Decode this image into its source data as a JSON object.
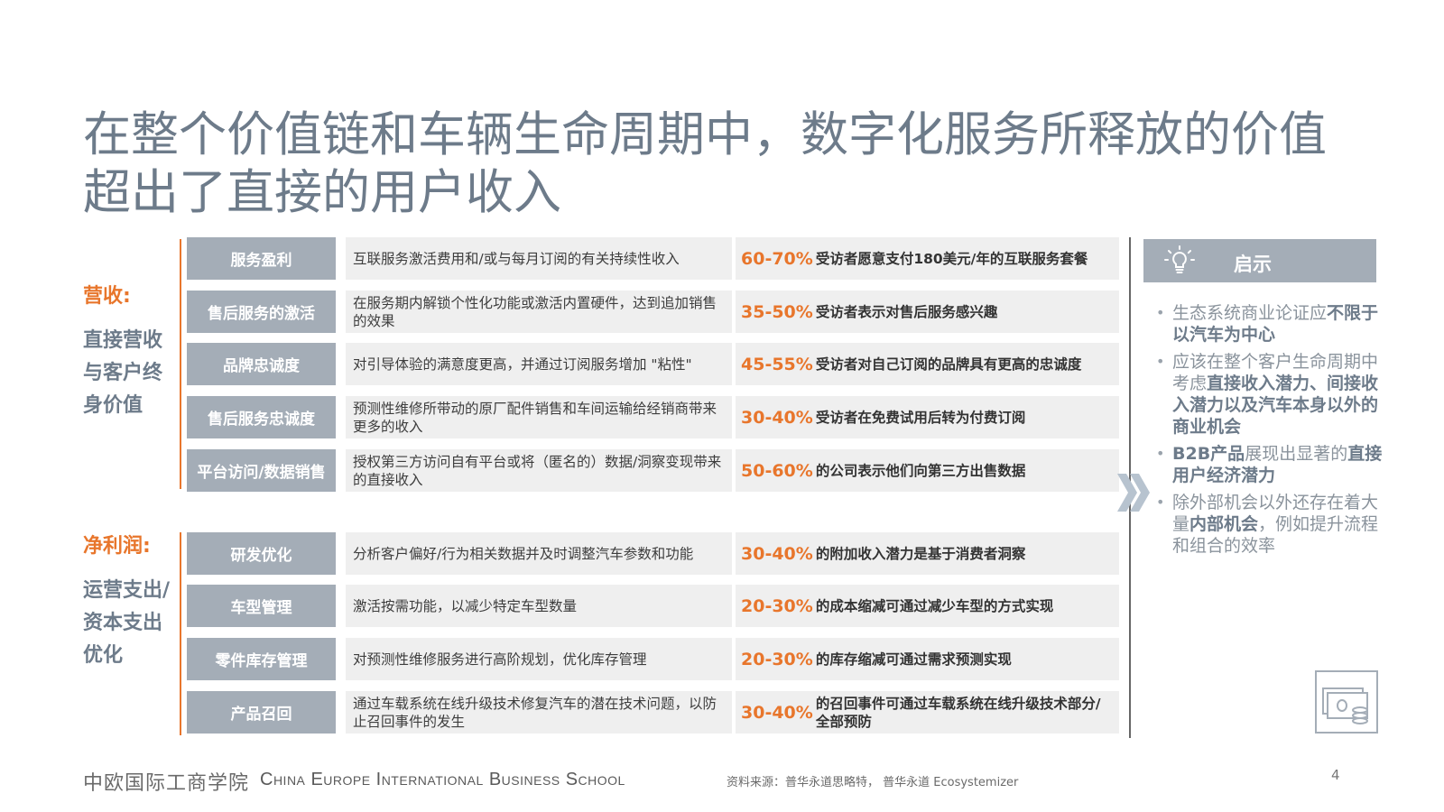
{
  "title": "在整个价值链和车辆生命周期中，数字化服务所释放的价值超出了直接的用户收入",
  "revenue": {
    "heading": "营收:",
    "subtitle": "直接营收与客户终身价值",
    "rows": [
      {
        "category": "服务盈利",
        "description": "互联服务激活费用和/或与每月订阅的有关持续性收入",
        "pct": "60-70%",
        "stat": "受访者愿意支付180美元/年的互联服务套餐"
      },
      {
        "category": "售后服务的激活",
        "description": "在服务期内解锁个性化功能或激活内置硬件，达到追加销售的效果",
        "pct": "35-50%",
        "stat": "受访者表示对售后服务感兴趣"
      },
      {
        "category": "品牌忠诚度",
        "description": "对引导体验的满意度更高，并通过订阅服务增加 \"粘性\"",
        "pct": "45-55%",
        "stat": "受访者对自己订阅的品牌具有更高的忠诚度"
      },
      {
        "category": "售后服务忠诚度",
        "description": "预测性维修所带动的原厂配件销售和车间运输给经销商带来更多的收入",
        "pct": "30-40%",
        "stat": "受访者在免费试用后转为付费订阅"
      },
      {
        "category": "平台访问/数据销售",
        "description": "授权第三方访问自有平台或将（匿名的）数据/洞察变现带来的直接收入",
        "pct": "50-60%",
        "stat": "的公司表示他们向第三方出售数据"
      }
    ]
  },
  "profit": {
    "heading": "净利润:",
    "subtitle": "运营支出/资本支出优化",
    "rows": [
      {
        "category": "研发优化",
        "description": "分析客户偏好/行为相关数据并及时调整汽车参数和功能",
        "pct": "30-40%",
        "stat": "的附加收入潜力是基于消费者洞察"
      },
      {
        "category": "车型管理",
        "description": "激活按需功能，以减少特定车型数量",
        "pct": "20-30%",
        "stat": "的成本缩减可通过减少车型的方式实现"
      },
      {
        "category": "零件库存管理",
        "description": "对预测性维修服务进行高阶规划，优化库存管理",
        "pct": "20-30%",
        "stat": "的库存缩减可通过需求预测实现"
      },
      {
        "category": "产品召回",
        "description": "通过车载系统在线升级技术修复汽车的潜在技术问题，以防止召回事件的发生",
        "pct": "30-40%",
        "stat": "的召回事件可通过车载系统在线升级技术部分/全部预防"
      }
    ]
  },
  "insights": {
    "heading": "启示",
    "icon": "lightbulb-icon",
    "items": [
      [
        {
          "t": "生态系统商业论证应",
          "b": false
        },
        {
          "t": "不限于以汽车为中心",
          "b": true
        }
      ],
      [
        {
          "t": "应该在整个客户生命周期中考虑",
          "b": false
        },
        {
          "t": "直接收入潜力、间接收入潜力以及汽车本身以外的商业机会",
          "b": true
        }
      ],
      [
        {
          "t": "B2B产品",
          "b": true
        },
        {
          "t": "展现出显著的",
          "b": false
        },
        {
          "t": "直接用户经济潜力",
          "b": true
        }
      ],
      [
        {
          "t": "除外部机会以外还存在着大量",
          "b": false
        },
        {
          "t": "内部机会",
          "b": true
        },
        {
          "t": "，例如提升流程和组合的效率",
          "b": false
        }
      ]
    ]
  },
  "footer": {
    "logo_text": "中欧国际工商学院",
    "school_name": "China Europe International Business School",
    "source": "资料来源：普华永道思略特， 普华永道 Ecosystemizer",
    "page_number": "4"
  },
  "colors": {
    "accent": "#e8762c",
    "category_bg": "#a4adb7",
    "cell_bg": "#efefef",
    "title": "#6d7b8a"
  }
}
